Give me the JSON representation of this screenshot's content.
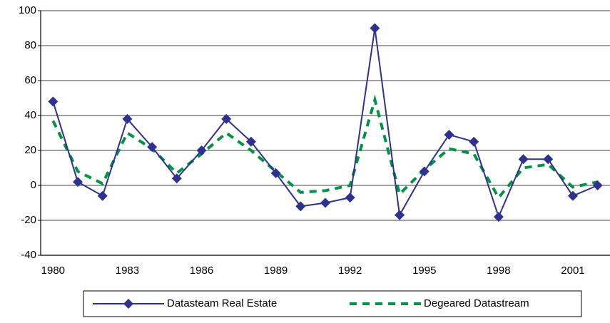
{
  "chart_data": {
    "type": "line",
    "categories": [
      "1980",
      null,
      null,
      "1983",
      null,
      null,
      "1986",
      null,
      null,
      "1989",
      null,
      null,
      "1992",
      null,
      null,
      "1995",
      null,
      null,
      "1998",
      null,
      null,
      "2001",
      null
    ],
    "series": [
      {
        "name": "Datasteam Real Estate",
        "color": "#2e3192",
        "marker": "diamond",
        "values": [
          48,
          2,
          -6,
          38,
          22,
          4,
          20,
          38,
          25,
          7,
          -12,
          -10,
          -7,
          90,
          -17,
          8,
          29,
          25,
          -18,
          15,
          15,
          -6,
          0
        ]
      },
      {
        "name": "Degeared Datastream",
        "color": "#009245",
        "dashed": true,
        "values": [
          37,
          8,
          1,
          30,
          21,
          7,
          18,
          30,
          20,
          8,
          -4,
          -3,
          0,
          49,
          -5,
          9,
          21,
          18,
          -7,
          10,
          12,
          -1,
          2
        ]
      }
    ],
    "ylim": [
      -40,
      100
    ],
    "yticks": [
      -40,
      -20,
      0,
      20,
      40,
      60,
      80,
      100
    ],
    "grid": true,
    "legend": "bottom"
  }
}
